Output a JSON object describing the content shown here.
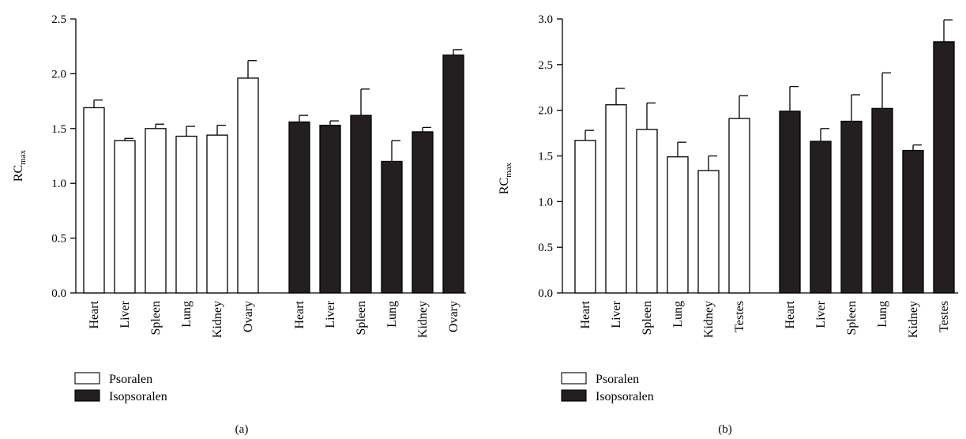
{
  "chart_data": [
    {
      "type": "bar",
      "panel_label": "(a)",
      "ylabel": "RC",
      "ylabel_sub": "max",
      "ylim": [
        0,
        2.5
      ],
      "yticks": [
        "0.0",
        "0.5",
        "1.0",
        "1.5",
        "2.0",
        "2.5"
      ],
      "grid": false,
      "legend_position": "bottom-left",
      "groups": [
        {
          "name": "Psoralen",
          "fill": "#ffffff",
          "categories": [
            "Heart",
            "Liver",
            "Spleen",
            "Lung",
            "Kidney",
            "Ovary"
          ],
          "values": [
            1.69,
            1.39,
            1.5,
            1.43,
            1.44,
            1.96
          ],
          "errors": [
            0.07,
            0.02,
            0.04,
            0.09,
            0.09,
            0.16
          ]
        },
        {
          "name": "Isopsoralen",
          "fill": "#231f20",
          "categories": [
            "Heart",
            "Liver",
            "Spleen",
            "Lung",
            "Kidney",
            "Ovary"
          ],
          "values": [
            1.56,
            1.53,
            1.62,
            1.2,
            1.47,
            2.17
          ],
          "errors": [
            0.06,
            0.04,
            0.24,
            0.19,
            0.04,
            0.05
          ]
        }
      ]
    },
    {
      "type": "bar",
      "panel_label": "(b)",
      "ylabel": "RC",
      "ylabel_sub": "max",
      "ylim": [
        0,
        3.0
      ],
      "yticks": [
        "0.0",
        "0.5",
        "1.0",
        "1.5",
        "2.0",
        "2.5",
        "3.0"
      ],
      "grid": false,
      "legend_position": "bottom-left",
      "groups": [
        {
          "name": "Psoralen",
          "fill": "#ffffff",
          "categories": [
            "Heart",
            "Liver",
            "Spleen",
            "Lung",
            "Kidney",
            "Testes"
          ],
          "values": [
            1.67,
            2.06,
            1.79,
            1.49,
            1.34,
            1.91
          ],
          "errors": [
            0.11,
            0.18,
            0.29,
            0.16,
            0.16,
            0.25
          ]
        },
        {
          "name": "Isopsoralen",
          "fill": "#231f20",
          "categories": [
            "Heart",
            "Liver",
            "Spleen",
            "Lung",
            "Kidney",
            "Testes"
          ],
          "values": [
            1.99,
            1.66,
            1.88,
            2.02,
            1.56,
            2.75
          ],
          "errors": [
            0.27,
            0.14,
            0.29,
            0.39,
            0.06,
            0.24
          ]
        }
      ]
    }
  ]
}
